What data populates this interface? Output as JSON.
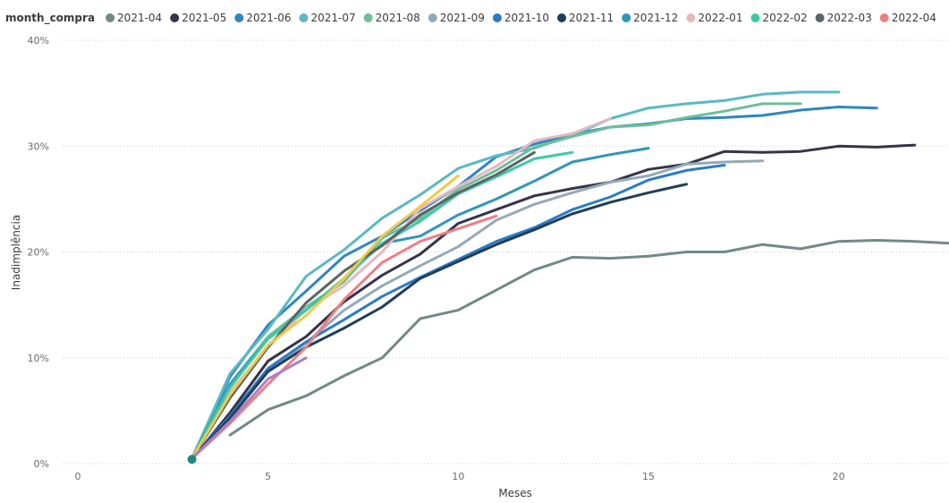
{
  "legend": {
    "title": "month_compra"
  },
  "axes": {
    "x_title": "Meses",
    "y_title": "Inadimplência",
    "x_ticks": [
      {
        "value": 0,
        "label": "0"
      },
      {
        "value": 5,
        "label": "5"
      },
      {
        "value": 10,
        "label": "10"
      },
      {
        "value": 15,
        "label": "15"
      },
      {
        "value": 20,
        "label": "20"
      }
    ],
    "y_ticks": [
      {
        "value": 0,
        "label": "0%"
      },
      {
        "value": 0.1,
        "label": "10%"
      },
      {
        "value": 0.2,
        "label": "20%"
      },
      {
        "value": 0.3,
        "label": "30%"
      },
      {
        "value": 0.4,
        "label": "40%"
      }
    ]
  },
  "chart_data": {
    "type": "line",
    "xlabel": "Meses",
    "ylabel": "Inadimplência",
    "xlim": [
      -0.4,
      22.9
    ],
    "ylim": [
      0,
      0.4
    ],
    "grid": "horizontal dotted",
    "legend_position": "top",
    "series": [
      {
        "name": "2021-04",
        "color": "#6f8a87",
        "x": [
          4,
          5,
          6,
          7,
          8,
          9,
          10,
          11,
          12,
          13,
          14,
          15,
          16,
          17,
          18,
          19,
          20,
          21,
          22,
          23
        ],
        "y": [
          0.027,
          0.051,
          0.064,
          0.083,
          0.1,
          0.137,
          0.145,
          0.164,
          0.183,
          0.195,
          0.194,
          0.196,
          0.2,
          0.2,
          0.207,
          0.203,
          0.21,
          0.211,
          0.21,
          0.208
        ]
      },
      {
        "name": "2021-05",
        "color": "#34344a",
        "x": [
          3,
          4,
          5,
          6,
          7,
          8,
          9,
          10,
          11,
          12,
          13,
          14,
          15,
          16,
          17,
          18,
          19,
          20,
          21,
          22
        ],
        "y": [
          0.004,
          0.048,
          0.097,
          0.12,
          0.153,
          0.178,
          0.198,
          0.227,
          0.24,
          0.253,
          0.26,
          0.266,
          0.278,
          0.283,
          0.295,
          0.294,
          0.295,
          0.3,
          0.299,
          0.301
        ]
      },
      {
        "name": "2021-06",
        "color": "#2f86c0",
        "x": [
          3,
          4,
          5,
          6,
          7,
          8,
          9,
          10,
          11,
          12,
          13,
          14,
          15,
          16,
          17,
          18,
          19,
          20,
          21
        ],
        "y": [
          0.005,
          0.082,
          0.131,
          0.163,
          0.196,
          0.215,
          0.239,
          0.262,
          0.29,
          0.302,
          0.311,
          0.318,
          0.321,
          0.326,
          0.327,
          0.329,
          0.334,
          0.337,
          0.336
        ]
      },
      {
        "name": "2021-07",
        "color": "#5ab9c4",
        "x": [
          3,
          4,
          5,
          6,
          7,
          8,
          9,
          10,
          11,
          12,
          13,
          14,
          15,
          16,
          17,
          18,
          19,
          20
        ],
        "y": [
          0.005,
          0.085,
          0.127,
          0.177,
          0.202,
          0.232,
          0.254,
          0.279,
          0.291,
          0.298,
          0.31,
          0.326,
          0.336,
          0.34,
          0.343,
          0.349,
          0.351,
          0.351
        ]
      },
      {
        "name": "2021-08",
        "color": "#6cbf9a",
        "x": [
          3,
          4,
          5,
          6,
          7,
          8,
          9,
          10,
          11,
          12,
          13,
          14,
          15,
          16,
          17,
          18,
          19
        ],
        "y": [
          0.005,
          0.075,
          0.12,
          0.148,
          0.172,
          0.213,
          0.232,
          0.259,
          0.277,
          0.299,
          0.309,
          0.318,
          0.32,
          0.327,
          0.333,
          0.34,
          0.34
        ]
      },
      {
        "name": "2021-09",
        "color": "#93aab7",
        "x": [
          3,
          4,
          5,
          6,
          7,
          8,
          9,
          10,
          11,
          12,
          13,
          14,
          15,
          16,
          17,
          18
        ],
        "y": [
          0.005,
          0.044,
          0.088,
          0.114,
          0.145,
          0.168,
          0.187,
          0.205,
          0.23,
          0.245,
          0.256,
          0.266,
          0.272,
          0.283,
          0.285,
          0.286
        ]
      },
      {
        "name": "2021-10",
        "color": "#2c7cc4",
        "x": [
          3,
          4,
          5,
          6,
          7,
          8,
          9,
          10,
          11,
          12,
          13,
          14,
          15,
          16,
          17
        ],
        "y": [
          0.005,
          0.045,
          0.09,
          0.115,
          0.136,
          0.158,
          0.176,
          0.193,
          0.21,
          0.223,
          0.24,
          0.252,
          0.268,
          0.277,
          0.282
        ]
      },
      {
        "name": "2021-11",
        "color": "#1f3e5a",
        "x": [
          3,
          4,
          5,
          6,
          7,
          8,
          9,
          10,
          11,
          12,
          13,
          14,
          15,
          16
        ],
        "y": [
          0.005,
          0.043,
          0.087,
          0.11,
          0.128,
          0.148,
          0.175,
          0.191,
          0.207,
          0.221,
          0.236,
          0.247,
          0.256,
          0.264
        ]
      },
      {
        "name": "2021-12",
        "color": "#2e97b7",
        "x": [
          3,
          4,
          5,
          6,
          7,
          8,
          9,
          10,
          11,
          12,
          13,
          14,
          15
        ],
        "y": [
          0.005,
          0.075,
          0.118,
          0.145,
          0.175,
          0.208,
          0.215,
          0.235,
          0.25,
          0.267,
          0.285,
          0.292,
          0.298
        ]
      },
      {
        "name": "2022-01",
        "color": "#e4b9be",
        "x": [
          3,
          4,
          5,
          6,
          7,
          8,
          9,
          10,
          11,
          12,
          13,
          14
        ],
        "y": [
          0.005,
          0.068,
          0.11,
          0.146,
          0.168,
          0.2,
          0.241,
          0.262,
          0.281,
          0.305,
          0.312,
          0.326
        ]
      },
      {
        "name": "2022-02",
        "color": "#3ec8a6",
        "x": [
          3,
          4,
          5,
          6,
          7,
          8,
          9,
          10,
          11,
          12,
          13
        ],
        "y": [
          0.005,
          0.072,
          0.118,
          0.145,
          0.175,
          0.208,
          0.229,
          0.255,
          0.271,
          0.288,
          0.294
        ]
      },
      {
        "name": "2022-03",
        "color": "#5b6467",
        "x": [
          3,
          4,
          5,
          6,
          7,
          8,
          9,
          10,
          11,
          12
        ],
        "y": [
          0.005,
          0.062,
          0.11,
          0.152,
          0.182,
          0.206,
          0.235,
          0.256,
          0.273,
          0.294
        ]
      },
      {
        "name": "2022-04",
        "color": "#ef7e83",
        "x": [
          3,
          4,
          5,
          6,
          7,
          8,
          9,
          10,
          11
        ],
        "y": [
          0.005,
          0.038,
          0.075,
          0.11,
          0.155,
          0.19,
          0.21,
          0.222,
          0.234
        ]
      },
      {
        "name": "",
        "color": "#f0c94a",
        "x": [
          3,
          4,
          5,
          6,
          7,
          8,
          9,
          10
        ],
        "y": [
          0.005,
          0.065,
          0.112,
          0.14,
          0.175,
          0.215,
          0.243,
          0.272
        ]
      },
      {
        "name": "",
        "color": "#a97fc4",
        "x": [
          3,
          4,
          5,
          6
        ],
        "y": [
          0.005,
          0.04,
          0.08,
          0.1
        ]
      }
    ]
  }
}
